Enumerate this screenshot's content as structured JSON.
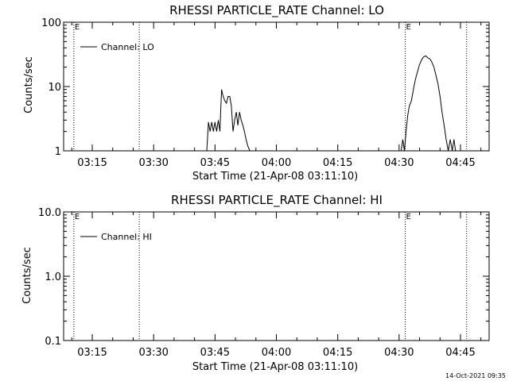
{
  "page_stamp": "14-Oct-2021 09:35",
  "chart_data": [
    {
      "type": "line",
      "title": "RHESSI PARTICLE_RATE Channel: LO",
      "xlabel": "Start Time (21-Apr-08 03:11:10)",
      "ylabel": "Counts/sec",
      "yscale": "log",
      "ylim": [
        1,
        100
      ],
      "y_ticks": [
        1,
        10,
        100
      ],
      "y_tick_labels": [
        "1",
        "10",
        "100"
      ],
      "xlim": [
        "03:08",
        "04:52"
      ],
      "x_ticks": [
        "03:15",
        "03:30",
        "03:45",
        "04:00",
        "04:15",
        "04:30",
        "04:45"
      ],
      "grid": false,
      "legend": {
        "position": "top-left",
        "entries": [
          "Channel: LO"
        ]
      },
      "event_lines": [
        {
          "time": "03:10.5",
          "label": "E"
        },
        {
          "time": "03:26.5",
          "label": ""
        },
        {
          "time": "04:31.5",
          "label": "E"
        },
        {
          "time": "04:46.5",
          "label": ""
        }
      ],
      "series": [
        {
          "name": "Channel: LO",
          "segments": [
            {
              "x": [
                "03:43",
                "03:43.4",
                "03:43.8",
                "03:44.2",
                "03:44.6",
                "03:45",
                "03:45.4",
                "03:45.8",
                "03:46.2",
                "03:46.6",
                "03:47",
                "03:47.4",
                "03:47.8",
                "03:48.2",
                "03:48.6",
                "03:49",
                "03:49.4",
                "03:49.8",
                "03:50.2",
                "03:50.6",
                "03:51",
                "03:51.4",
                "03:51.8",
                "03:52.2",
                "03:52.6",
                "03:53",
                "03:53.5"
              ],
              "y": [
                1,
                2.8,
                2.0,
                2.8,
                2.0,
                2.8,
                2.0,
                3.0,
                2.0,
                9.0,
                7.0,
                6.0,
                5.5,
                7.0,
                7.0,
                5.0,
                2.0,
                3.0,
                4.0,
                2.5,
                4.0,
                3.0,
                2.5,
                2.0,
                1.5,
                1.2,
                1
              ]
            },
            {
              "x": [
                "04:30.5",
                "04:30.9",
                "04:31.3",
                "04:31.7",
                "04:32.1",
                "04:32.5",
                "04:33",
                "04:33.5",
                "04:34",
                "04:34.5",
                "04:35",
                "04:35.5",
                "04:36",
                "04:36.5",
                "04:37",
                "04:37.5",
                "04:38",
                "04:38.5",
                "04:39",
                "04:39.5",
                "04:40",
                "04:40.5",
                "04:41",
                "04:41.5",
                "04:42",
                "04:42.5",
                "04:43",
                "04:43.4",
                "04:43.8",
                "04:44.2"
              ],
              "y": [
                1,
                1.5,
                1.0,
                2.0,
                3.5,
                5.0,
                6.0,
                9.0,
                13,
                17,
                22,
                26,
                29,
                30,
                28,
                27,
                24,
                20,
                15,
                11,
                7.0,
                4.0,
                2.5,
                1.5,
                1.0,
                1.5,
                1.0,
                1.5,
                1.0,
                1
              ]
            }
          ]
        }
      ]
    },
    {
      "type": "line",
      "title": "RHESSI PARTICLE_RATE Channel: HI",
      "xlabel": "Start Time (21-Apr-08 03:11:10)",
      "ylabel": "Counts/sec",
      "yscale": "log",
      "ylim": [
        0.1,
        10
      ],
      "y_ticks": [
        0.1,
        1,
        10
      ],
      "y_tick_labels": [
        "0.1",
        "1.0",
        "10.0"
      ],
      "xlim": [
        "03:08",
        "04:52"
      ],
      "x_ticks": [
        "03:15",
        "03:30",
        "03:45",
        "04:00",
        "04:15",
        "04:30",
        "04:45"
      ],
      "grid": false,
      "legend": {
        "position": "top-left",
        "entries": [
          "Channel: HI"
        ]
      },
      "event_lines": [
        {
          "time": "03:10.5",
          "label": "E"
        },
        {
          "time": "03:26.5",
          "label": ""
        },
        {
          "time": "04:31.5",
          "label": "E"
        },
        {
          "time": "04:46.5",
          "label": ""
        }
      ],
      "series": [
        {
          "name": "Channel: HI",
          "segments": []
        }
      ]
    }
  ]
}
